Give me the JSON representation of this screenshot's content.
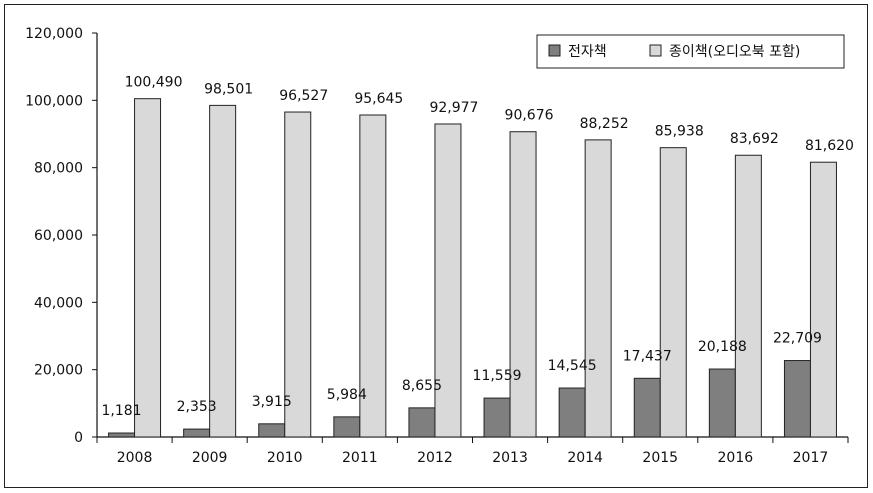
{
  "chart_data": {
    "type": "bar",
    "categories": [
      "2008",
      "2009",
      "2010",
      "2011",
      "2012",
      "2013",
      "2014",
      "2015",
      "2016",
      "2017"
    ],
    "series": [
      {
        "name": "전자책",
        "color": "#7f7f7f",
        "values": [
          1181,
          2353,
          3915,
          5984,
          8655,
          11559,
          14545,
          17437,
          20188,
          22709
        ],
        "labels": [
          "1,181",
          "2,353",
          "3,915",
          "5,984",
          "8,655",
          "11,559",
          "14,545",
          "17,437",
          "20,188",
          "22,709"
        ]
      },
      {
        "name": "종이책(오디오북 포함)",
        "color": "#d9d9d9",
        "values": [
          100490,
          98501,
          96527,
          95645,
          92977,
          90676,
          88252,
          85938,
          83692,
          81620
        ],
        "labels": [
          "100,490",
          "98,501",
          "96,527",
          "95,645",
          "92,977",
          "90,676",
          "88,252",
          "85,938",
          "83,692",
          "81,620"
        ]
      }
    ],
    "ylim": [
      0,
      120000
    ],
    "yticks": [
      0,
      20000,
      40000,
      60000,
      80000,
      100000,
      120000
    ],
    "ytick_labels": [
      "0",
      "20,000",
      "40,000",
      "60,000",
      "80,000",
      "100,000",
      "120,000"
    ],
    "grid": false,
    "legend_position": "top-right"
  }
}
